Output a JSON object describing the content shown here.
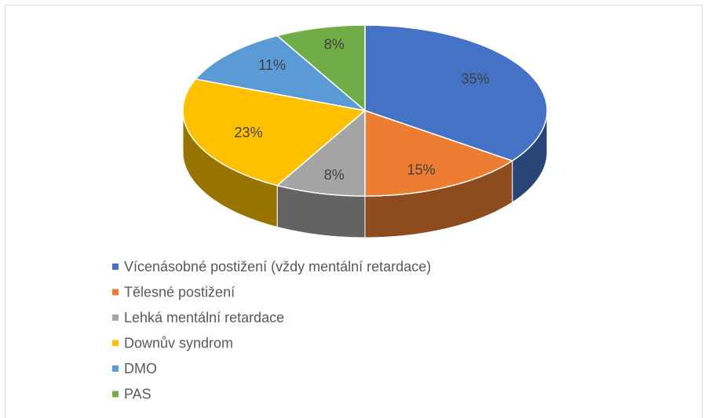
{
  "chart_data": {
    "type": "pie",
    "categories": [
      "Vícenásobné postižení (vždy mentální retardace)",
      "Tělesné postižení",
      "Lehká mentální retardace",
      "Downův syndrom",
      "DMO",
      "PAS"
    ],
    "values": [
      35,
      15,
      8,
      23,
      11,
      8
    ],
    "value_labels": [
      "35%",
      "15%",
      "8%",
      "23%",
      "11%",
      "8%"
    ],
    "colors": [
      "#4472c4",
      "#ed7d31",
      "#a5a5a5",
      "#ffc000",
      "#5b9bd5",
      "#70ad47"
    ],
    "legend": "bottom"
  }
}
